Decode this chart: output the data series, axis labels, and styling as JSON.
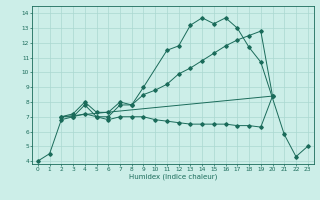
{
  "title": "",
  "xlabel": "Humidex (Indice chaleur)",
  "bg_color": "#cceee8",
  "line_color": "#1a6b5a",
  "grid_color": "#aad8d0",
  "xlim": [
    -0.5,
    23.5
  ],
  "ylim": [
    3.8,
    14.5
  ],
  "xticks": [
    0,
    1,
    2,
    3,
    4,
    5,
    6,
    7,
    8,
    9,
    10,
    11,
    12,
    13,
    14,
    15,
    16,
    17,
    18,
    19,
    20,
    21,
    22,
    23
  ],
  "yticks": [
    4,
    5,
    6,
    7,
    8,
    9,
    10,
    11,
    12,
    13,
    14
  ],
  "line1_x": [
    0,
    1,
    2,
    3,
    4,
    5,
    6,
    7,
    8,
    9,
    11,
    12,
    13,
    14,
    15,
    16,
    17,
    18,
    19,
    21,
    22,
    23
  ],
  "line1_y": [
    4.0,
    4.5,
    6.8,
    7.0,
    7.8,
    7.0,
    7.0,
    7.8,
    7.8,
    9.0,
    11.5,
    11.8,
    13.2,
    13.7,
    13.3,
    13.7,
    13.0,
    11.7,
    10.7,
    5.8,
    4.3,
    5.0
  ],
  "line2_x": [
    2,
    3,
    4,
    5,
    6,
    7,
    8,
    9,
    10,
    11,
    12,
    13,
    14,
    15,
    16,
    17,
    18,
    19,
    20
  ],
  "line2_y": [
    7.0,
    7.2,
    8.0,
    7.3,
    7.3,
    8.0,
    7.8,
    8.5,
    8.8,
    9.2,
    9.9,
    10.3,
    10.8,
    11.3,
    11.8,
    12.2,
    12.5,
    12.8,
    8.4
  ],
  "line3_x": [
    2,
    3,
    4,
    5,
    6,
    7,
    8,
    9,
    10,
    11,
    12,
    13,
    14,
    15,
    16,
    17,
    18,
    19,
    20
  ],
  "line3_y": [
    7.0,
    7.0,
    7.2,
    7.0,
    6.8,
    7.0,
    7.0,
    7.0,
    6.8,
    6.7,
    6.6,
    6.5,
    6.5,
    6.5,
    6.5,
    6.4,
    6.4,
    6.3,
    8.4
  ],
  "line4_x": [
    2,
    20
  ],
  "line4_y": [
    7.0,
    8.4
  ]
}
